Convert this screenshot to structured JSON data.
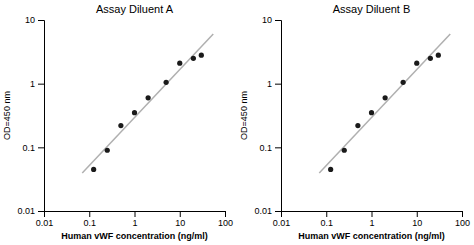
{
  "chart_data": [
    {
      "type": "scatter",
      "title": "Assay Diluent A",
      "x_label": "Human vWF concentration (ng/ml)",
      "y_label": "OD=450 nm",
      "log": true,
      "grid": false,
      "xlim": [
        0.01,
        100
      ],
      "ylim": [
        0.01,
        10
      ],
      "xticks": [
        0.01,
        0.1,
        1,
        10,
        100
      ],
      "yticks": [
        0.01,
        0.1,
        1,
        10
      ],
      "series": [
        {
          "type": "line",
          "color": "#b0b0b0",
          "x": [
            0.07,
            55
          ],
          "values": [
            0.03958,
            6.048
          ]
        },
        {
          "type": "scatter",
          "color": "#1a1a1a",
          "x": [
            0.125,
            0.25,
            0.5,
            1.0,
            2.0,
            5.0,
            10.0,
            20.0,
            30.0
          ],
          "values": [
            0.045,
            0.09,
            0.22,
            0.35,
            0.6,
            1.05,
            2.1,
            2.5,
            2.8
          ]
        }
      ]
    },
    {
      "type": "scatter",
      "title": "Assay Diluent B",
      "x_label": "Human vWF concentration (ng/ml)",
      "y_label": "OD=450 nm",
      "log": true,
      "grid": false,
      "xlim": [
        0.01,
        100
      ],
      "ylim": [
        0.01,
        10
      ],
      "xticks": [
        0.01,
        0.1,
        1,
        10,
        100
      ],
      "yticks": [
        0.01,
        0.1,
        1,
        10
      ],
      "series": [
        {
          "type": "line",
          "color": "#b0b0b0",
          "x": [
            0.07,
            55
          ],
          "values": [
            0.03958,
            6.048
          ]
        },
        {
          "type": "scatter",
          "color": "#1a1a1a",
          "x": [
            0.125,
            0.25,
            0.5,
            1.0,
            2.0,
            5.0,
            10.0,
            20.0,
            30.0
          ],
          "values": [
            0.045,
            0.09,
            0.22,
            0.35,
            0.6,
            1.05,
            2.1,
            2.5,
            2.8
          ]
        }
      ]
    }
  ]
}
